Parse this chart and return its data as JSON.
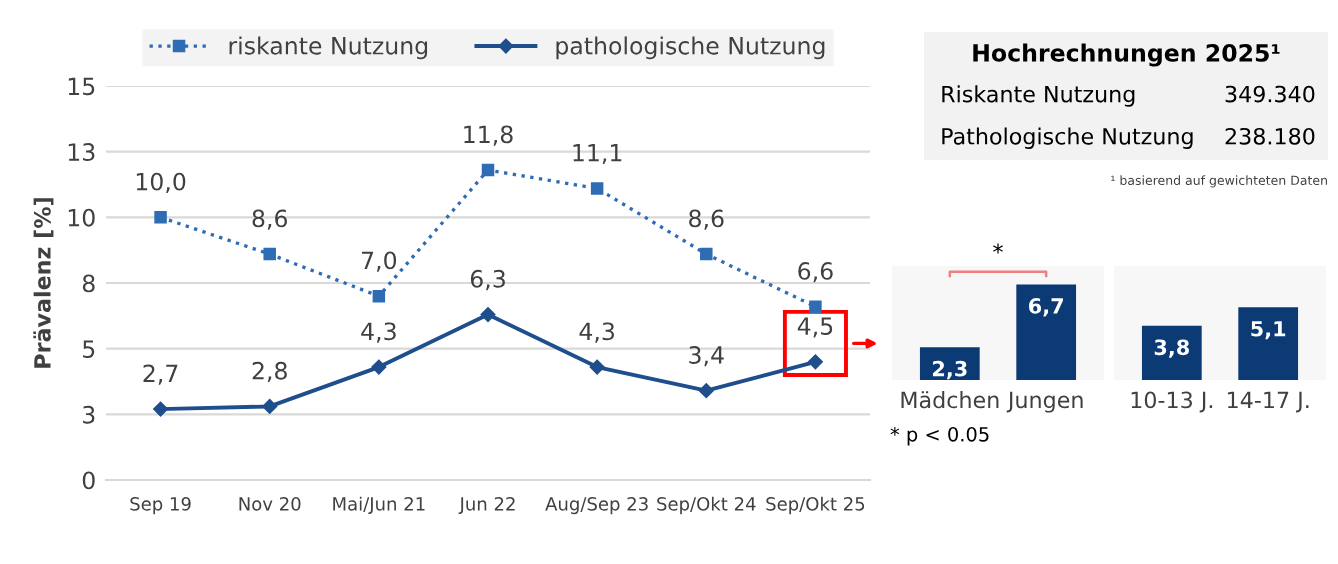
{
  "chart_data": [
    {
      "type": "line",
      "ylabel": "Prävalenz [%]",
      "categories": [
        "Sep 19",
        "Nov 20",
        "Mai/Jun 21",
        "Jun 22",
        "Aug/Sep 23",
        "Sep/Okt 24",
        "Sep/Okt 25"
      ],
      "series": [
        {
          "name": "riskante Nutzung",
          "color": "#2e6db4",
          "values": [
            10.0,
            8.6,
            7.0,
            11.8,
            11.1,
            8.6,
            6.6
          ],
          "value_labels": [
            "10,0",
            "8,6",
            "7,0",
            "11,8",
            "11,1",
            "8,6",
            "6,6"
          ],
          "marker": "square",
          "line_style": "dotted"
        },
        {
          "name": "pathologische Nutzung",
          "color": "#1f4e8c",
          "values": [
            2.7,
            2.8,
            4.3,
            6.3,
            4.3,
            3.4,
            4.5
          ],
          "value_labels": [
            "2,7",
            "2,8",
            "4,3",
            "6,3",
            "4,3",
            "3,4",
            "4,5"
          ],
          "marker": "diamond",
          "line_style": "solid"
        }
      ],
      "ylim": [
        0,
        15
      ],
      "yticks": [
        0,
        {
          "value": 2.5,
          "label": "3"
        },
        5,
        {
          "value": 7.5,
          "label": "8"
        },
        10,
        {
          "value": 12.5,
          "label": "13"
        },
        15
      ],
      "grid": "y",
      "legend": "top"
    },
    {
      "type": "bar",
      "categories": [
        "Mädchen",
        "Jungen"
      ],
      "values": [
        2.3,
        6.7
      ],
      "value_labels": [
        "2,3",
        "6,7"
      ],
      "color": "#0b3a75",
      "ylim": [
        0,
        8
      ],
      "annotations": [
        "*",
        "* p < 0.05"
      ]
    },
    {
      "type": "bar",
      "categories": [
        "10-13 J.",
        "14-17 J."
      ],
      "values": [
        3.8,
        5.1
      ],
      "value_labels": [
        "3,8",
        "5,1"
      ],
      "color": "#0b3a75",
      "ylim": [
        0,
        8
      ]
    },
    {
      "type": "other",
      "title": "Hochrechnungen 2025¹",
      "categories": [
        "Riskante Nutzung",
        "Pathologische Nutzung"
      ],
      "value_labels": [
        "349.340",
        "238.180"
      ],
      "annotations": [
        "¹ basierend auf gewichteten Daten"
      ]
    }
  ]
}
